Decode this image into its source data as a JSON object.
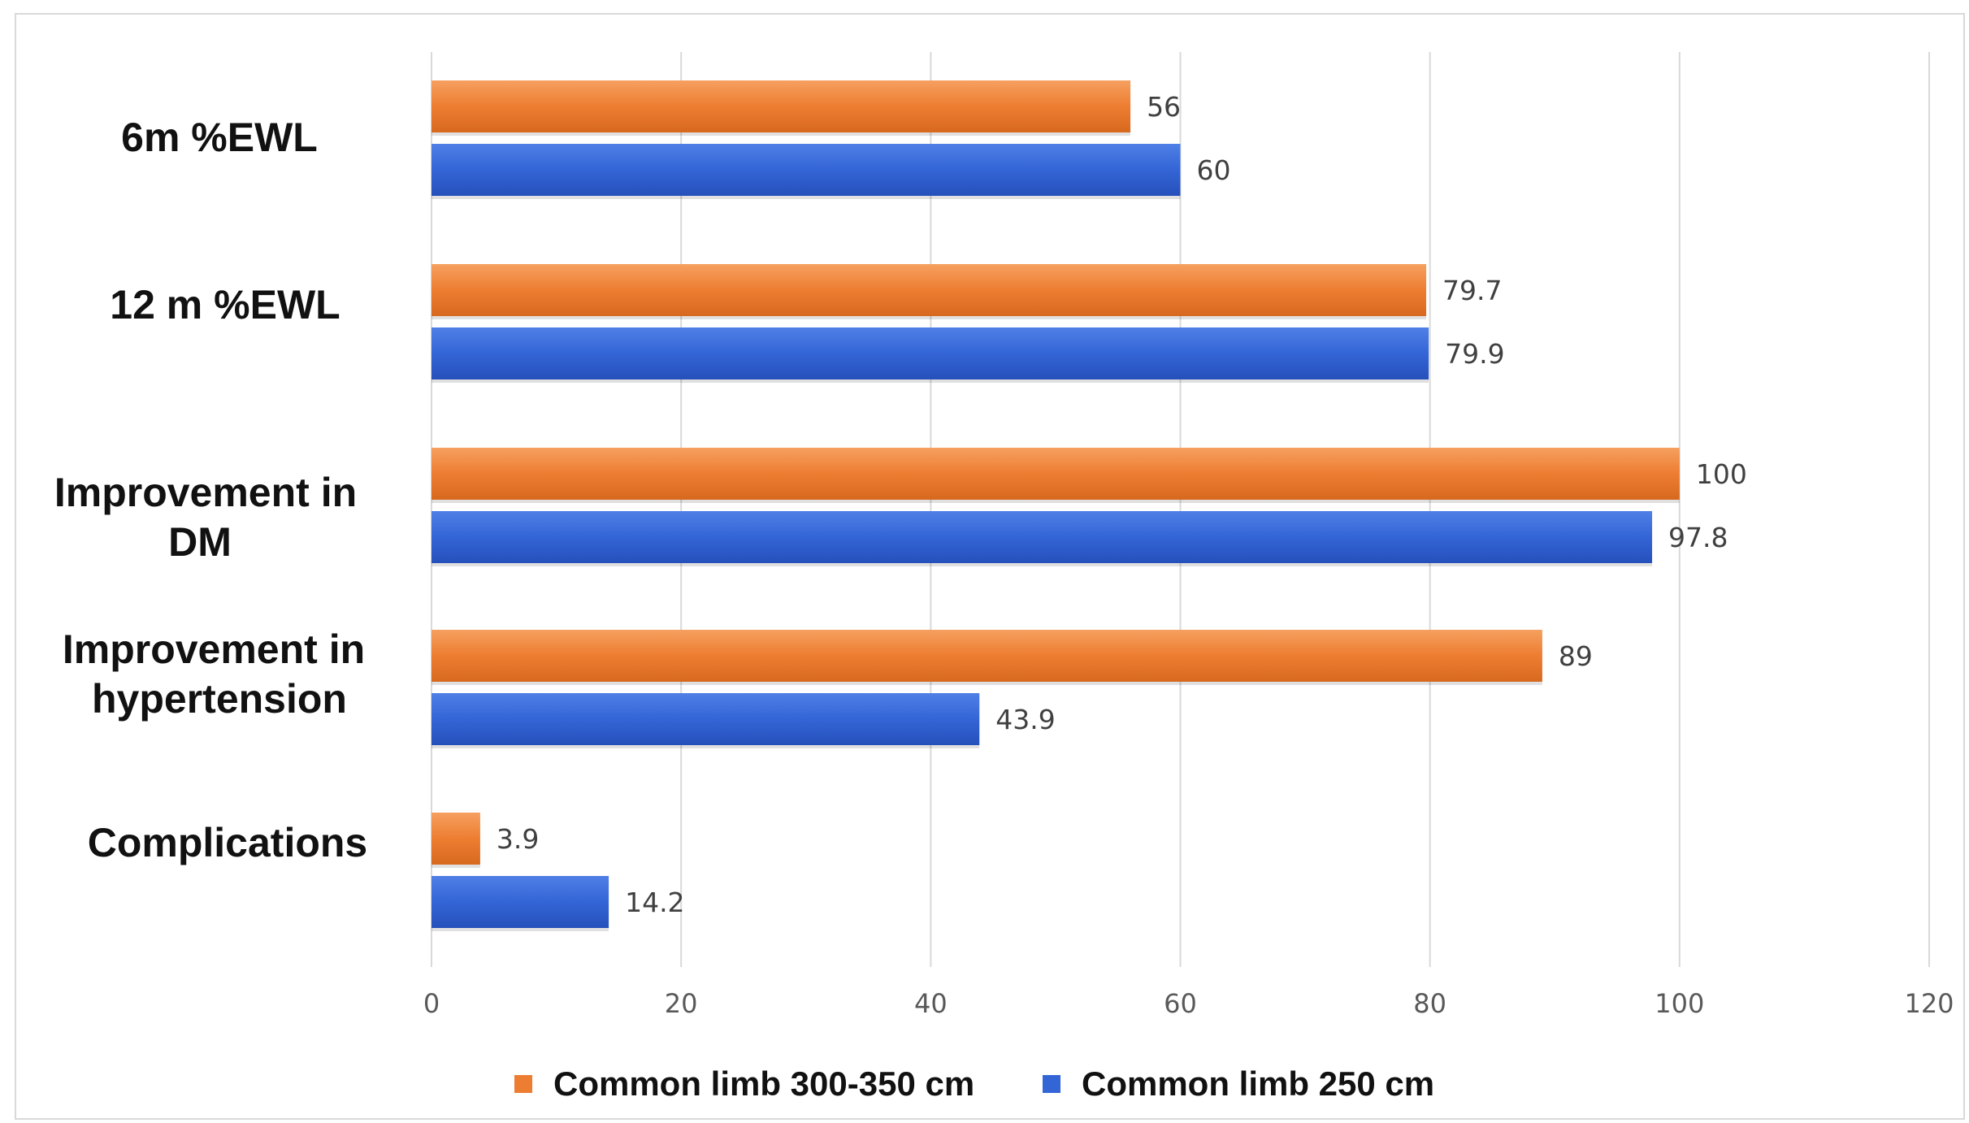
{
  "chart_data": {
    "type": "bar",
    "orientation": "horizontal",
    "categories": [
      "6m %EWL",
      "12 m %EWL",
      "Improvement in DM",
      "Improvement in hypertension",
      "Complications"
    ],
    "series": [
      {
        "name": "Common limb 300-350 cm",
        "color": "#ED7D31",
        "values": [
          56,
          79.7,
          100,
          89,
          3.9
        ],
        "labels": [
          "56",
          "79.7",
          "100",
          "89",
          "3.9"
        ]
      },
      {
        "name": "Common limb 250 cm",
        "color": "#3465D6",
        "values": [
          60,
          79.9,
          97.8,
          43.9,
          14.2
        ],
        "labels": [
          "60",
          "79.9",
          "97.8",
          "43.9",
          "14.2"
        ]
      }
    ],
    "xlim": [
      0,
      120
    ],
    "xticks": [
      "0",
      "20",
      "40",
      "60",
      "80",
      "100",
      "120"
    ],
    "grid": true,
    "legend": "bottom-center"
  }
}
